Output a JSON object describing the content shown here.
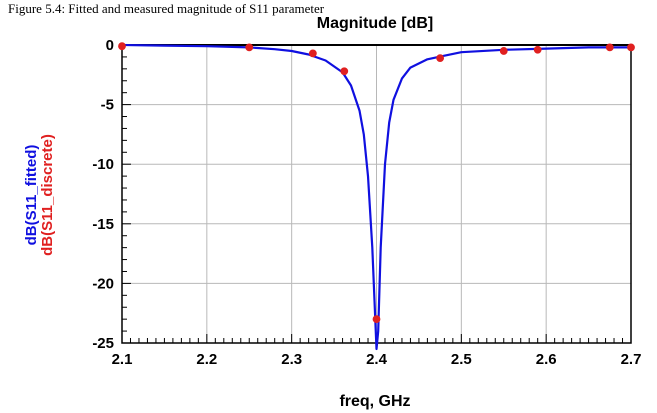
{
  "caption": "Figure 5.4: Fitted and measured magnitude of S11 parameter",
  "colors": {
    "fitted": "#1010e0",
    "discrete": "#e02020",
    "grid": "#b8b8b8",
    "axis": "#000000"
  },
  "chart_data": {
    "type": "line",
    "title": "Magnitude [dB]",
    "xlabel": "freq, GHz",
    "ylabels": [
      "dB(S11_fitted)",
      "dB(S11_discrete)"
    ],
    "xlim": [
      2.1,
      2.7
    ],
    "ylim": [
      -25,
      0
    ],
    "xticks": [
      "2.1",
      "2.2",
      "2.3",
      "2.4",
      "2.5",
      "2.6",
      "2.7"
    ],
    "yticks": [
      "0",
      "-5",
      "-10",
      "-15",
      "-20",
      "-25"
    ],
    "grid": true,
    "series": [
      {
        "name": "dB(S11_fitted)",
        "style": "line",
        "x": [
          2.1,
          2.15,
          2.2,
          2.25,
          2.28,
          2.3,
          2.32,
          2.34,
          2.36,
          2.37,
          2.38,
          2.385,
          2.39,
          2.395,
          2.4,
          2.402,
          2.405,
          2.41,
          2.415,
          2.42,
          2.43,
          2.44,
          2.46,
          2.48,
          2.5,
          2.55,
          2.6,
          2.65,
          2.7
        ],
        "y": [
          0.0,
          -0.05,
          -0.1,
          -0.2,
          -0.35,
          -0.5,
          -0.8,
          -1.3,
          -2.3,
          -3.4,
          -5.5,
          -7.5,
          -11,
          -17,
          -25.5,
          -24,
          -17,
          -10,
          -6.5,
          -4.6,
          -2.8,
          -1.9,
          -1.2,
          -0.9,
          -0.6,
          -0.4,
          -0.3,
          -0.2,
          -0.2
        ]
      },
      {
        "name": "dB(S11_discrete)",
        "style": "markers",
        "x": [
          2.1,
          2.25,
          2.325,
          2.362,
          2.4,
          2.475,
          2.55,
          2.59,
          2.675,
          2.7
        ],
        "y": [
          -0.1,
          -0.2,
          -0.7,
          -2.2,
          -23.0,
          -1.1,
          -0.5,
          -0.4,
          -0.2,
          -0.2
        ]
      }
    ]
  }
}
